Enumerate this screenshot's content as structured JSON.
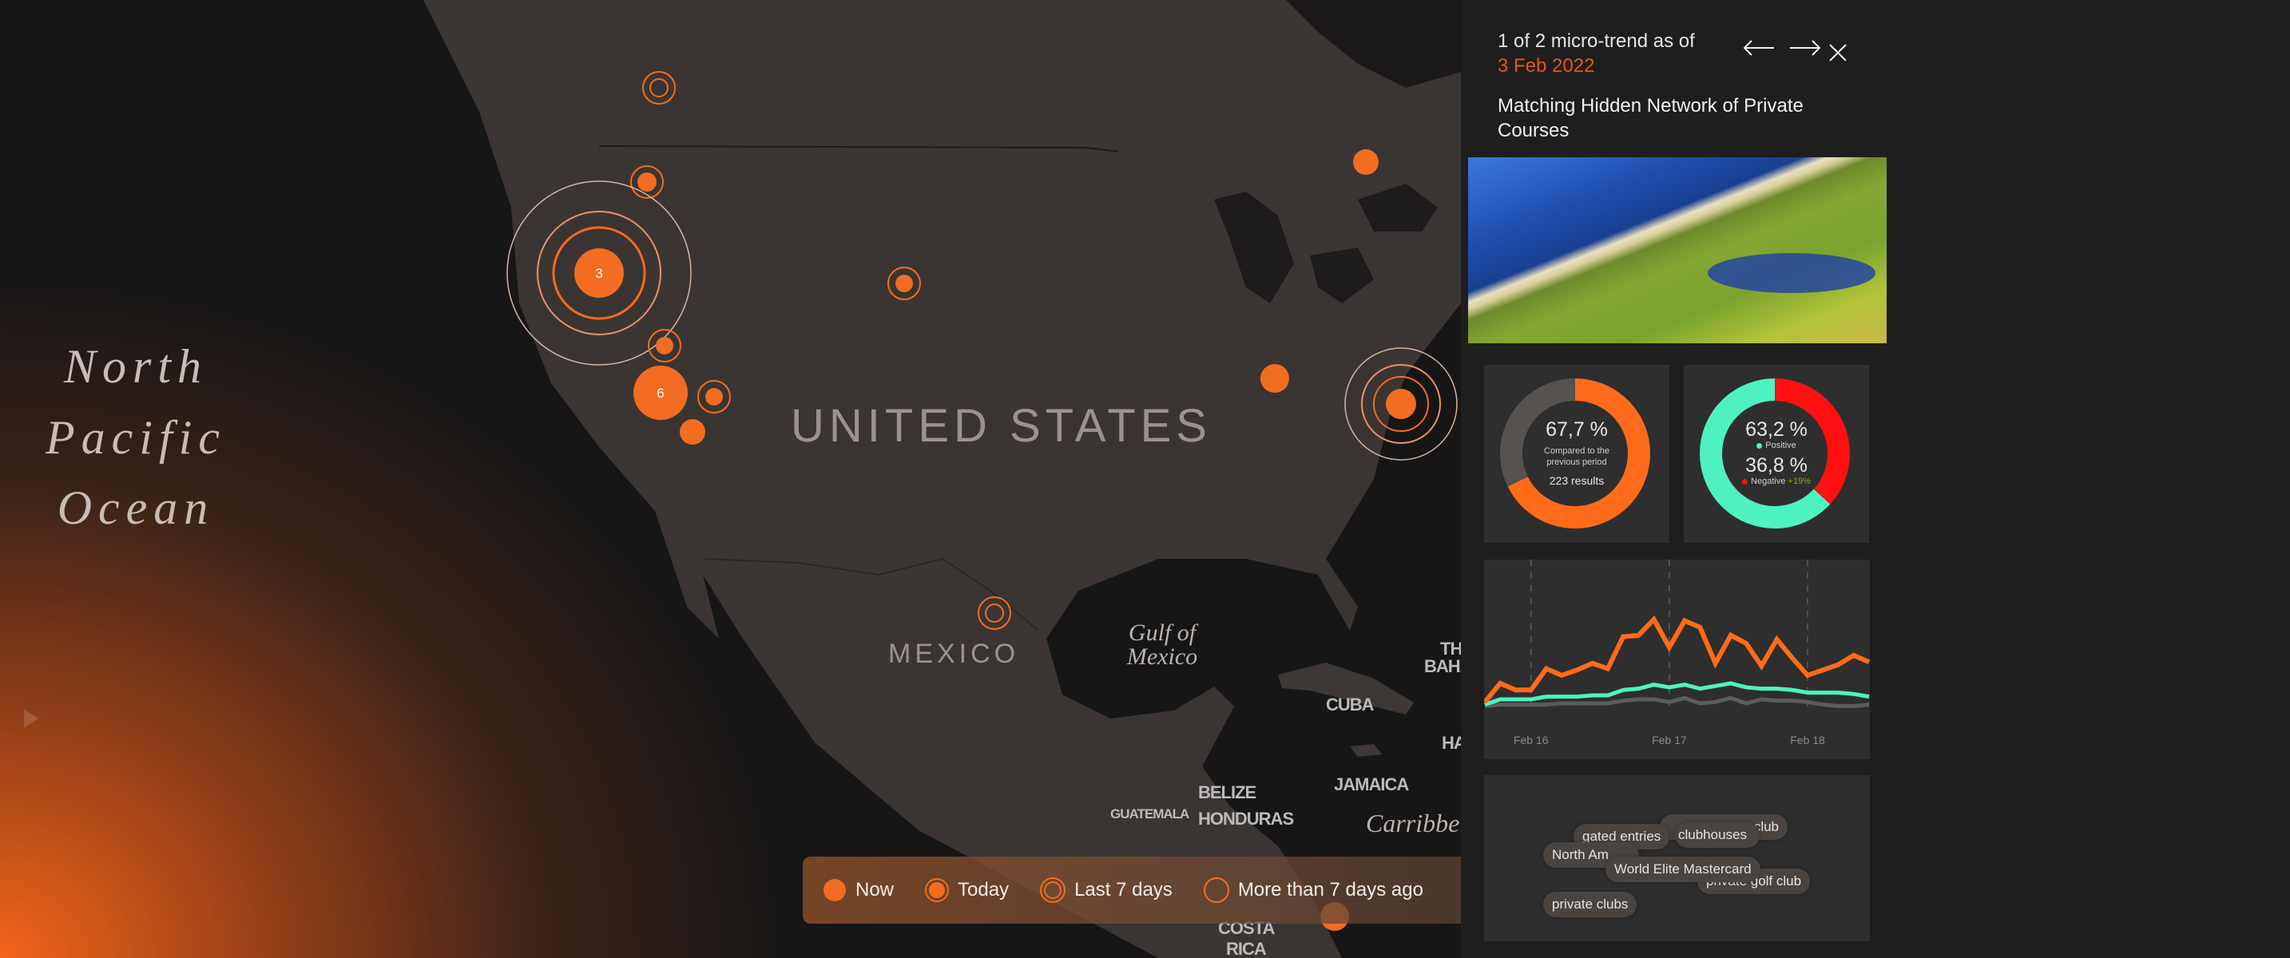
{
  "map": {
    "ocean_label": [
      "North",
      "Pacific",
      "Ocean"
    ],
    "country_labels": {
      "us": "UNITED STATES",
      "mexico": "MEXICO",
      "cuba": "CUBA",
      "bahamas": [
        "TH",
        "BAHA"
      ],
      "haiti": "HA",
      "jamaica": "JAMAICA",
      "belize": "BELIZE",
      "honduras": "HONDURAS",
      "guatemala": "GUATEMALA",
      "costa_rica": [
        "COSTA",
        "RICA"
      ]
    },
    "water_labels": {
      "gulf": [
        "Gulf of",
        "Mexico"
      ],
      "caribbean": "Carribbe"
    },
    "clusters": {
      "west": "3",
      "california": "6"
    },
    "accent_color": "#f26c21"
  },
  "legend": {
    "items": [
      {
        "label": "Now",
        "icon": "filled-dot-icon"
      },
      {
        "label": "Today",
        "icon": "dot-ring-icon"
      },
      {
        "label": "Last 7 days",
        "icon": "double-ring-icon"
      },
      {
        "label": "More than 7 days ago",
        "icon": "single-ring-icon"
      }
    ]
  },
  "panel": {
    "counter": "1 of 2 micro-trend as of",
    "date": "3 Feb 2022",
    "title": "Matching Hidden Network of Private Courses",
    "date_color": "#e0581d",
    "tags": [
      "club",
      "clubhouses",
      "gated entries",
      "North Am",
      "private golf club",
      "World Elite Mastercard",
      "private clubs"
    ]
  },
  "chart_data": [
    {
      "type": "pie",
      "donut": true,
      "values": [
        67.7,
        32.3
      ],
      "colors": [
        "#ff6b1a",
        "#555250"
      ],
      "center_value": "67,7 %",
      "center_caption": [
        "Compared to the",
        "previous period"
      ],
      "center_footer": "223 results"
    },
    {
      "type": "pie",
      "donut": true,
      "values": [
        36.8,
        63.2
      ],
      "colors": [
        "#ff1010",
        "#4ef2c0"
      ],
      "positive": {
        "value": "63,2 %",
        "label": "Positive",
        "color": "#4ef2c0"
      },
      "negative": {
        "value": "36,8 %",
        "label": "Negative",
        "change": "+19%",
        "color": "#ff1010",
        "change_color": "#7cb518"
      }
    },
    {
      "type": "line",
      "x": [
        "Feb 15 16:00",
        "Feb 15 18:40",
        "Feb 15 21:20",
        "Feb 16 00:00",
        "Feb 16 02:40",
        "Feb 16 05:20",
        "Feb 16 08:00",
        "Feb 16 10:40",
        "Feb 16 13:20",
        "Feb 16 16:00",
        "Feb 16 18:40",
        "Feb 16 21:20",
        "Feb 17 00:00",
        "Feb 17 02:40",
        "Feb 17 05:20",
        "Feb 17 08:00",
        "Feb 17 10:40",
        "Feb 17 13:20",
        "Feb 17 16:00",
        "Feb 17 18:40",
        "Feb 17 21:20",
        "Feb 18 00:00",
        "Feb 18 02:40",
        "Feb 18 05:20",
        "Feb 18 08:00",
        "Feb 18 10:40"
      ],
      "series": [
        {
          "color": "#ff6b1a",
          "values": [
            4,
            18,
            13,
            13,
            29,
            24,
            28,
            33,
            29,
            53,
            54,
            66,
            45,
            65,
            60,
            33,
            54,
            48,
            31,
            51,
            37,
            24,
            28,
            32,
            39,
            34
          ]
        },
        {
          "color": "#4ef2c0",
          "values": [
            2,
            6,
            6,
            6,
            8,
            8,
            8,
            9,
            9,
            13,
            14,
            17,
            15,
            17,
            14,
            16,
            18,
            15,
            14,
            14,
            13,
            11,
            11,
            11,
            10,
            8
          ]
        },
        {
          "color": "#5c5c5c",
          "values": [
            1,
            2,
            2,
            2,
            2,
            3,
            3,
            3,
            3,
            5,
            6,
            6,
            4,
            7,
            3,
            4,
            7,
            3,
            6,
            5,
            5,
            4,
            2,
            1,
            1,
            2
          ]
        }
      ],
      "x_ticks": [
        "Feb 16",
        "Feb 17",
        "Feb 18"
      ],
      "x_tick_index": [
        3,
        12,
        21
      ],
      "ylim": [
        0,
        100
      ],
      "grid": "dashed vertical at ticks"
    }
  ]
}
